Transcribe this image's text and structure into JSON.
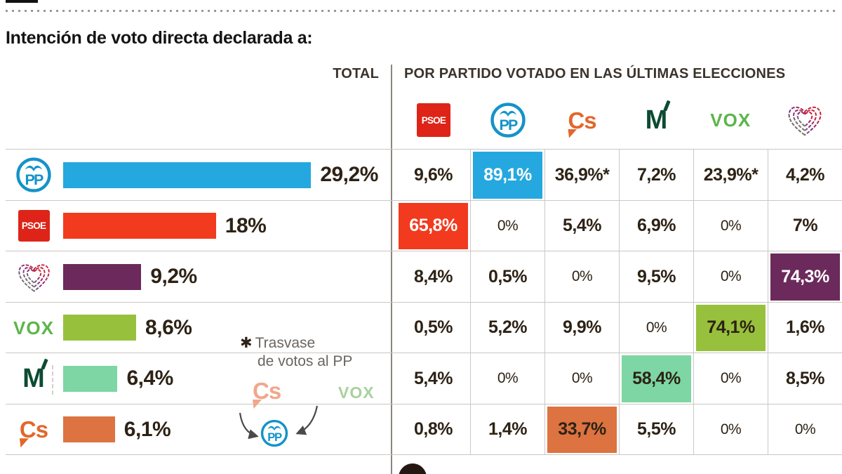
{
  "page": {
    "title": "Intención de voto directa declarada a:",
    "total_header": "TOTAL",
    "crosstab_header": "POR PARTIDO VOTADO EN LAS ÚLTIMAS ELECCIONES"
  },
  "logos": {
    "psoe": "PSOE",
    "pp": "PP",
    "cs": "Cs",
    "mas_madrid": "M",
    "vox": "VOX"
  },
  "colors": {
    "psoe_logo": "#de2418",
    "pp_logo": "#1493c8",
    "cs_logo": "#e2672b",
    "mm_logo": "#0d4b33",
    "vox_logo": "#5cb54a",
    "text_dark": "#2d2215"
  },
  "annotation": {
    "asterisk": "✱",
    "line1": "Trasvase",
    "line2": "de votos al PP",
    "cs_label": "Cs",
    "vox_label": "VOX",
    "cs_faded_color": "#f0a78c",
    "vox_faded_color": "#a8d19e"
  },
  "chart_data": {
    "type": "bar",
    "title": "Intención de voto directa declarada a:",
    "xlabel": "",
    "ylabel": "",
    "legend_position": "none",
    "grid": false,
    "total_column_label": "TOTAL",
    "crosstab_label": "POR PARTIDO VOTADO EN LAS ÚLTIMAS ELECCIONES",
    "categories": [
      "PP",
      "PSOE",
      "Unidas Podemos",
      "VOX",
      "Más Madrid",
      "Ciudadanos"
    ],
    "values": [
      29.2,
      18,
      9.2,
      8.6,
      6.4,
      6.1
    ],
    "crosstab_columns": [
      "PSOE",
      "PP",
      "Cs",
      "Más Madrid",
      "VOX",
      "Unidas Podemos"
    ],
    "rows": [
      {
        "party": "PP",
        "value": 29.2,
        "total_label": "29,2%",
        "color": "#25a8df",
        "cells": [
          {
            "text": "9,6%"
          },
          {
            "text": "89,1%",
            "bg": "#25a8df",
            "fg": "#ffffff"
          },
          {
            "text": "36,9%*"
          },
          {
            "text": "7,2%"
          },
          {
            "text": "23,9%*"
          },
          {
            "text": "4,2%"
          }
        ]
      },
      {
        "party": "PSOE",
        "value": 18,
        "total_label": "18%",
        "color": "#f23a1e",
        "cells": [
          {
            "text": "65,8%",
            "bg": "#f23a1e",
            "fg": "#ffffff"
          },
          {
            "text": "0%"
          },
          {
            "text": "5,4%"
          },
          {
            "text": "6,9%"
          },
          {
            "text": "0%"
          },
          {
            "text": "7%"
          }
        ]
      },
      {
        "party": "Unidas Podemos",
        "value": 9.2,
        "total_label": "9,2%",
        "color": "#6b2a5b",
        "cells": [
          {
            "text": "8,4%"
          },
          {
            "text": "0,5%"
          },
          {
            "text": "0%"
          },
          {
            "text": "9,5%"
          },
          {
            "text": "0%"
          },
          {
            "text": "74,3%",
            "bg": "#6b2a5b",
            "fg": "#ffffff"
          }
        ]
      },
      {
        "party": "VOX",
        "value": 8.6,
        "total_label": "8,6%",
        "color": "#97c13c",
        "cells": [
          {
            "text": "0,5%"
          },
          {
            "text": "5,2%"
          },
          {
            "text": "9,9%"
          },
          {
            "text": "0%"
          },
          {
            "text": "74,1%",
            "bg": "#97c13c"
          },
          {
            "text": "1,6%"
          }
        ]
      },
      {
        "party": "Más Madrid",
        "value": 6.4,
        "total_label": "6,4%",
        "color": "#7dd6a4",
        "cells": [
          {
            "text": "5,4%"
          },
          {
            "text": "0%"
          },
          {
            "text": "0%"
          },
          {
            "text": "58,4%",
            "bg": "#7dd6a4"
          },
          {
            "text": "0%"
          },
          {
            "text": "8,5%"
          }
        ]
      },
      {
        "party": "Cs",
        "value": 6.1,
        "total_label": "6,1%",
        "color": "#dc7340",
        "cells": [
          {
            "text": "0,8%"
          },
          {
            "text": "1,4%"
          },
          {
            "text": "33,7%",
            "bg": "#dc7340"
          },
          {
            "text": "5,5%"
          },
          {
            "text": "0%"
          },
          {
            "text": "0%"
          }
        ]
      }
    ]
  }
}
